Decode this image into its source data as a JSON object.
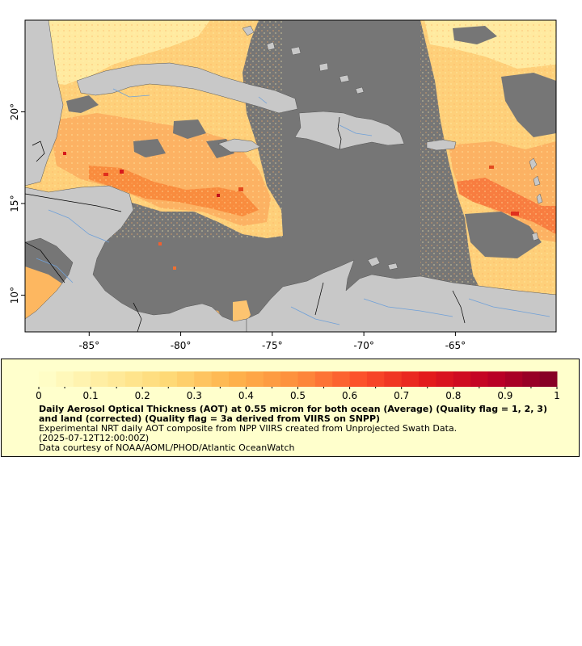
{
  "map": {
    "lon_range": [
      -88.5,
      -59.5
    ],
    "lat_range": [
      8.0,
      25.0
    ],
    "lon_ticks": [
      {
        "value": -85,
        "label": "-85°"
      },
      {
        "value": -80,
        "label": "-80°"
      },
      {
        "value": -75,
        "label": "-75°"
      },
      {
        "value": -70,
        "label": "-70°"
      },
      {
        "value": -65,
        "label": "-65°"
      }
    ],
    "lat_ticks": [
      {
        "value": 20,
        "label": "20°"
      },
      {
        "value": 15,
        "label": "15°"
      },
      {
        "value": 10,
        "label": "10°"
      }
    ],
    "colors": {
      "no_data": "#767676",
      "land": "#c8c8c8",
      "boundary": "#000000",
      "river": "#6fa0d8"
    }
  },
  "colorbar": {
    "min": 0,
    "max": 1,
    "tick_labels": [
      "0",
      "0.1",
      "0.2",
      "0.3",
      "0.4",
      "0.5",
      "0.6",
      "0.7",
      "0.8",
      "0.9",
      "1"
    ],
    "colors": [
      "#ffffcc",
      "#ffeda0",
      "#fed976",
      "#feb24c",
      "#fd8d3c",
      "#fc4e2a",
      "#e31a1c",
      "#bd0026",
      "#800026"
    ]
  },
  "legend": {
    "title": "Daily Aerosol Optical Thickness (AOT) at 0.55 micron for both ocean (Average) (Quality flag = 1, 2, 3) and land (corrected) (Quality flag = 3a derived from VIIRS on SNPP)",
    "description": "Experimental NRT daily AOT composite from NPP VIIRS created from Unprojected Swath Data.",
    "date": "(2025-07-12T12:00:00Z)",
    "credit": "Data courtesy of NOAA/AOML/PHOD/Atlantic OceanWatch"
  }
}
